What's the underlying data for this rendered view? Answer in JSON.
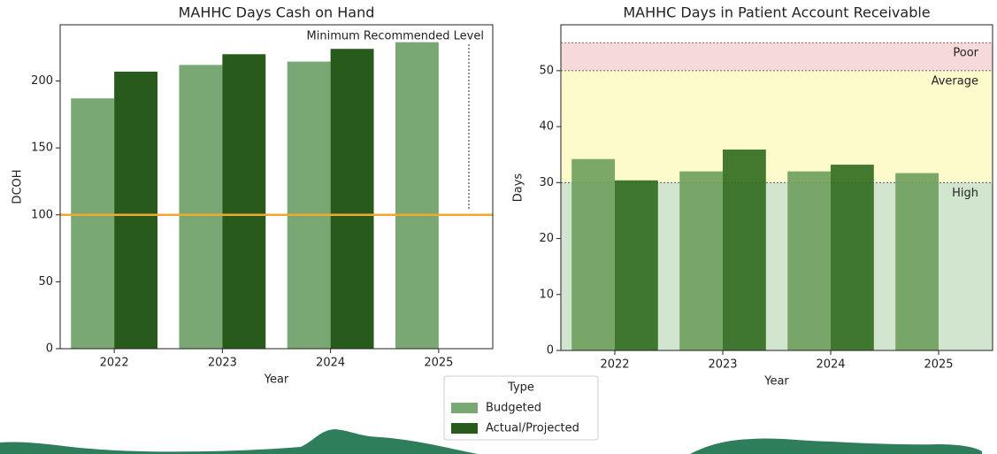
{
  "chart_data": [
    {
      "type": "bar",
      "title": "MAHHC Days Cash on Hand",
      "x_label": "Year",
      "y_label": "DCOH",
      "categories": [
        "2022",
        "2023",
        "2024",
        "2025"
      ],
      "series": [
        {
          "name": "Budgeted",
          "color": "#7aa874",
          "values": [
            187,
            212,
            214.5,
            229
          ]
        },
        {
          "name": "Actual/Projected",
          "color": "#275a1b",
          "values": [
            207,
            220,
            224,
            null
          ]
        }
      ],
      "ylim": [
        0,
        242
      ],
      "yticks": [
        0,
        50,
        100,
        150,
        200
      ],
      "reference": {
        "value": 100,
        "label": "Minimum Recommended Level",
        "color": "#f0a830"
      }
    },
    {
      "type": "bar",
      "title": "MAHHC Days in Patient Account Receivable",
      "x_label": "Year",
      "y_label": "Days",
      "categories": [
        "2022",
        "2023",
        "2024",
        "2025"
      ],
      "series": [
        {
          "name": "Budgeted",
          "color": "#6e9f5c",
          "values": [
            34.2,
            32,
            32,
            31.7
          ]
        },
        {
          "name": "Actual/Projected",
          "color": "#2f6a1e",
          "values": [
            30.4,
            35.9,
            33.2,
            null
          ]
        }
      ],
      "ylim": [
        0,
        58.2
      ],
      "yticks": [
        0,
        10,
        20,
        30,
        40,
        50
      ],
      "bands": [
        {
          "label": "Poor",
          "range": [
            50,
            55
          ],
          "color": "#f6dada"
        },
        {
          "label": "Average",
          "range": [
            30,
            50
          ],
          "color": "#fdfacc"
        },
        {
          "label": "High",
          "range": [
            0,
            30
          ],
          "color": "#d2e6cf"
        }
      ]
    }
  ],
  "legend": {
    "title": "Type"
  }
}
